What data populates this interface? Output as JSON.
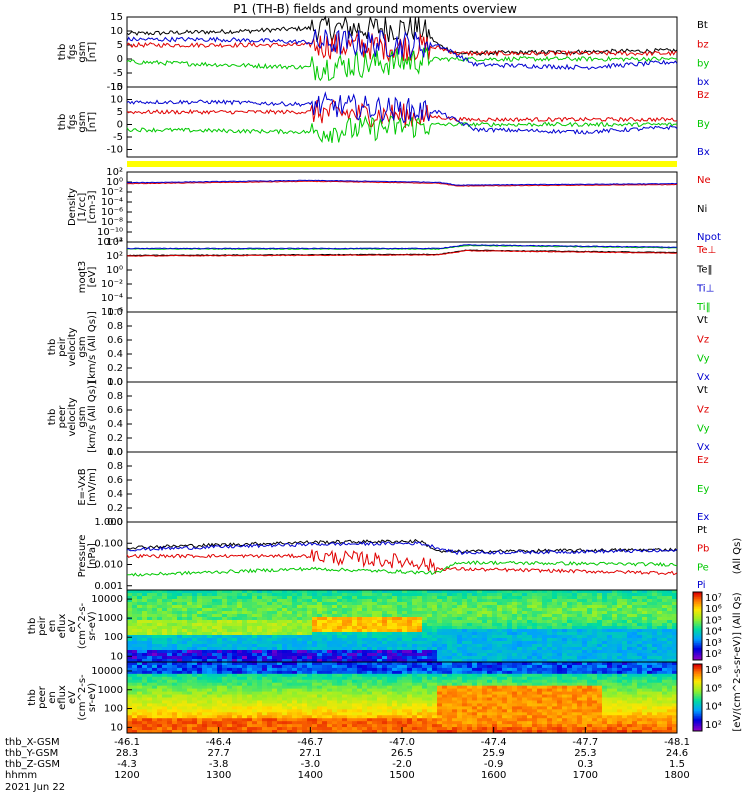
{
  "title": "P1 (TH-B) fields and ground moments overview",
  "colors": {
    "black": "#000000",
    "red": "#e00000",
    "green": "#00c800",
    "blue": "#0000d0",
    "yellow": "#ffff00"
  },
  "chart_data": [
    {
      "id": "fgs",
      "type": "line",
      "ylabel": [
        "thb",
        "fgs",
        "gsm",
        "[nT]"
      ],
      "ylim": [
        -10,
        15
      ],
      "ticks": [
        "15",
        "10",
        "5",
        "0",
        "-5",
        "-10"
      ],
      "legend": [
        {
          "name": "Bt",
          "color": "black"
        },
        {
          "name": "bz",
          "color": "red"
        },
        {
          "name": "by",
          "color": "green"
        },
        {
          "name": "bx",
          "color": "blue"
        }
      ],
      "series": [
        {
          "name": "Bt",
          "color": "black",
          "profile": [
            [
              1200,
              9
            ],
            [
              1330,
              10
            ],
            [
              1400,
              11
            ],
            [
              1520,
              11
            ],
            [
              1540,
              5
            ],
            [
              1560,
              2
            ],
            [
              1800,
              3
            ]
          ]
        },
        {
          "name": "bz",
          "color": "red",
          "profile": [
            [
              1200,
              5
            ],
            [
              1400,
              5
            ],
            [
              1540,
              4
            ],
            [
              1560,
              2
            ],
            [
              1800,
              2
            ]
          ]
        },
        {
          "name": "by",
          "color": "green",
          "profile": [
            [
              1200,
              -1
            ],
            [
              1400,
              -3
            ],
            [
              1540,
              0
            ],
            [
              1560,
              0
            ],
            [
              1800,
              0
            ]
          ]
        },
        {
          "name": "bx",
          "color": "blue",
          "profile": [
            [
              1200,
              7
            ],
            [
              1300,
              7
            ],
            [
              1400,
              6
            ],
            [
              1540,
              5
            ],
            [
              1580,
              -2
            ],
            [
              1700,
              -3
            ],
            [
              1800,
              -1
            ]
          ]
        }
      ]
    },
    {
      "id": "fgs_dsl",
      "type": "line",
      "ylabel": [
        "thb",
        "fgs",
        "gsm",
        "[nT]"
      ],
      "ylim": [
        -13,
        15
      ],
      "ticks": [
        "15",
        "10",
        "5",
        "0",
        "-5",
        "-10"
      ],
      "legend": [
        {
          "name": "Bz",
          "color": "red"
        },
        {
          "name": "By",
          "color": "green"
        },
        {
          "name": "Bx",
          "color": "blue"
        }
      ],
      "series": [
        {
          "name": "Bz",
          "color": "red",
          "profile": [
            [
              1200,
              5
            ],
            [
              1400,
              5
            ],
            [
              1540,
              3
            ],
            [
              1560,
              2
            ],
            [
              1800,
              2
            ]
          ]
        },
        {
          "name": "By",
          "color": "green",
          "profile": [
            [
              1200,
              -2
            ],
            [
              1400,
              -3
            ],
            [
              1540,
              0
            ],
            [
              1800,
              0
            ]
          ]
        },
        {
          "name": "Bx",
          "color": "blue",
          "profile": [
            [
              1200,
              9
            ],
            [
              1300,
              9
            ],
            [
              1400,
              8
            ],
            [
              1540,
              5
            ],
            [
              1580,
              -2
            ],
            [
              1700,
              -3
            ],
            [
              1800,
              -1
            ]
          ]
        }
      ]
    },
    {
      "id": "density",
      "type": "line",
      "scale": "log",
      "ylabel": [
        "Density",
        "[1/cc]",
        "[cm-3]"
      ],
      "ylim": [
        -12,
        3
      ],
      "ticks": [
        "10²",
        "10⁰",
        "10⁻²",
        "10⁻⁴",
        "10⁻⁶",
        "10⁻⁸",
        "10⁻¹⁰",
        "10⁻¹²"
      ],
      "legend": [
        {
          "name": "Ne",
          "color": "red"
        },
        {
          "name": "Ni",
          "color": "black"
        },
        {
          "name": "Npot",
          "color": "blue"
        }
      ],
      "series": [
        {
          "name": "Ne",
          "color": "red",
          "profile": [
            [
              1200,
              0.5
            ],
            [
              1400,
              1
            ],
            [
              1540,
              0.6
            ],
            [
              1560,
              0
            ],
            [
              1800,
              0.3
            ]
          ]
        },
        {
          "name": "Npot",
          "color": "blue",
          "profile": [
            [
              1200,
              0.7
            ],
            [
              1400,
              1.2
            ],
            [
              1540,
              0.8
            ],
            [
              1560,
              0.2
            ],
            [
              1800,
              0.5
            ]
          ]
        }
      ]
    },
    {
      "id": "temperature",
      "type": "line",
      "scale": "log",
      "ylabel": [
        "moqt3",
        "[eV]"
      ],
      "ylim": [
        -7,
        5
      ],
      "ticks": [
        "10⁴",
        "10²",
        "10⁰",
        "10⁻²",
        "10⁻⁴",
        "10⁻⁶"
      ],
      "legend": [
        {
          "name": "Te⊥",
          "color": "red"
        },
        {
          "name": "Te‖",
          "color": "black"
        },
        {
          "name": "Ti⊥",
          "color": "blue"
        },
        {
          "name": "Ti‖",
          "color": "green"
        }
      ],
      "series": [
        {
          "name": "Ti",
          "color": "green",
          "profile": [
            [
              1200,
              3.8
            ],
            [
              1540,
              3.8
            ],
            [
              1570,
              4.4
            ],
            [
              1800,
              4
            ]
          ]
        },
        {
          "name": "Ti⊥",
          "color": "blue",
          "profile": [
            [
              1200,
              3.9
            ],
            [
              1540,
              3.9
            ],
            [
              1570,
              4.5
            ],
            [
              1800,
              4.1
            ]
          ]
        },
        {
          "name": "Te",
          "color": "black",
          "profile": [
            [
              1200,
              2.7
            ],
            [
              1540,
              2.9
            ],
            [
              1570,
              3.6
            ],
            [
              1800,
              3.2
            ]
          ]
        },
        {
          "name": "Te⊥",
          "color": "red",
          "profile": [
            [
              1200,
              2.6
            ],
            [
              1540,
              2.8
            ],
            [
              1570,
              3.5
            ],
            [
              1800,
              3.1
            ]
          ]
        }
      ]
    },
    {
      "id": "vi",
      "type": "line",
      "ylabel": [
        "thb",
        "peir",
        "velocity",
        "gsm",
        "[km/s (All Qs)]"
      ],
      "ylim": [
        0,
        1
      ],
      "ticks": [
        "1.0",
        "0.8",
        "0.6",
        "0.4",
        "0.2",
        "0.0"
      ],
      "legend": [
        {
          "name": "Vt",
          "color": "black"
        },
        {
          "name": "Vz",
          "color": "red"
        },
        {
          "name": "Vy",
          "color": "green"
        },
        {
          "name": "Vx",
          "color": "blue"
        }
      ],
      "series": []
    },
    {
      "id": "ve",
      "type": "line",
      "ylabel": [
        "thb",
        "peer",
        "velocity",
        "gsm",
        "[km/s (All Qs)]"
      ],
      "ylim": [
        0,
        1
      ],
      "ticks": [
        "1.0",
        "0.8",
        "0.6",
        "0.4",
        "0.2",
        "0.0"
      ],
      "legend": [
        {
          "name": "Vt",
          "color": "black"
        },
        {
          "name": "Vz",
          "color": "red"
        },
        {
          "name": "Vy",
          "color": "green"
        },
        {
          "name": "Vx",
          "color": "blue"
        }
      ],
      "series": []
    },
    {
      "id": "efield",
      "type": "line",
      "ylabel": [
        "E=-VxB",
        "[mV/m]"
      ],
      "ylim": [
        0,
        1
      ],
      "ticks": [
        "1.0",
        "0.8",
        "0.6",
        "0.4",
        "0.2",
        "0.0"
      ],
      "legend": [
        {
          "name": "Ez",
          "color": "red"
        },
        {
          "name": "Ey",
          "color": "green"
        },
        {
          "name": "Ex",
          "color": "blue"
        }
      ],
      "series": []
    },
    {
      "id": "pressure",
      "type": "line",
      "scale": "log",
      "ylabel": [
        "Pressure",
        "[nPa]"
      ],
      "ylim": [
        -3.2,
        0
      ],
      "ticks": [
        "1.000",
        "0.100",
        "0.010",
        "0.001"
      ],
      "legend": [
        {
          "name": "Pt",
          "color": "black"
        },
        {
          "name": "Pb",
          "color": "red"
        },
        {
          "name": "Pe",
          "color": "green"
        },
        {
          "name": "Pi",
          "color": "blue"
        }
      ],
      "side_label": "(All Qs)",
      "series": [
        {
          "name": "Pt",
          "color": "black",
          "profile": [
            [
              1200,
              -1.2
            ],
            [
              1400,
              -0.95
            ],
            [
              1520,
              -0.9
            ],
            [
              1540,
              -1.4
            ],
            [
              1800,
              -1.3
            ]
          ]
        },
        {
          "name": "Pb",
          "color": "red",
          "profile": [
            [
              1200,
              -1.6
            ],
            [
              1400,
              -1.6
            ],
            [
              1520,
              -1.9
            ],
            [
              1540,
              -2.2
            ],
            [
              1800,
              -2.4
            ]
          ]
        },
        {
          "name": "Pe",
          "color": "green",
          "profile": [
            [
              1200,
              -2.5
            ],
            [
              1400,
              -2.2
            ],
            [
              1540,
              -2.4
            ],
            [
              1560,
              -1.9
            ],
            [
              1800,
              -2.0
            ]
          ]
        },
        {
          "name": "Pi",
          "color": "blue",
          "profile": [
            [
              1200,
              -1.3
            ],
            [
              1400,
              -1.05
            ],
            [
              1520,
              -1.0
            ],
            [
              1560,
              -1.45
            ],
            [
              1800,
              -1.35
            ]
          ]
        }
      ]
    },
    {
      "id": "ion_spectrogram",
      "type": "heatmap",
      "ylabel": [
        "thb",
        "peir",
        "en",
        "eflux",
        "eV",
        "(cm^2-s-",
        "sr-eV)"
      ],
      "ticks": [
        "10000",
        "1000",
        "100",
        "10"
      ],
      "yrange": [
        5,
        30000
      ]
    },
    {
      "id": "electron_spectrogram",
      "type": "heatmap",
      "ylabel": [
        "thb",
        "peer",
        "en",
        "eflux",
        "eV",
        "(cm^2-s-",
        "sr-eV)"
      ],
      "ticks": [
        "10000",
        "1000",
        "100",
        "10"
      ],
      "yrange": [
        5,
        30000
      ]
    }
  ],
  "colorbar": {
    "ion_ticks": [
      "10⁷",
      "10⁶",
      "10⁵",
      "10⁴",
      "10³",
      "10²"
    ],
    "electron_ticks": [
      "10⁸",
      "10⁶",
      "10⁴",
      "10²"
    ],
    "label": "[eV/(cm^2-s-sr-eV)] (All Qs)"
  },
  "xaxis": {
    "tick_times": [
      1200,
      1300,
      1400,
      1500,
      1600,
      1700,
      1800
    ],
    "rows": [
      {
        "name": "thb_X-GSM",
        "values": [
          "-46.1",
          "-46.4",
          "-46.7",
          "-47.0",
          "-47.4",
          "-47.7",
          "-48.1"
        ]
      },
      {
        "name": "thb_Y-GSM",
        "values": [
          "28.3",
          "27.7",
          "27.1",
          "26.5",
          "25.9",
          "25.3",
          "24.6"
        ]
      },
      {
        "name": "thb_Z-GSM",
        "values": [
          "-4.3",
          "-3.8",
          "-3.0",
          "-2.0",
          "-0.9",
          "0.3",
          "1.5"
        ]
      },
      {
        "name": "hhmm",
        "values": [
          "1200",
          "1300",
          "1400",
          "1500",
          "1600",
          "1700",
          "1800"
        ]
      }
    ],
    "date": "2021 Jun 22"
  }
}
